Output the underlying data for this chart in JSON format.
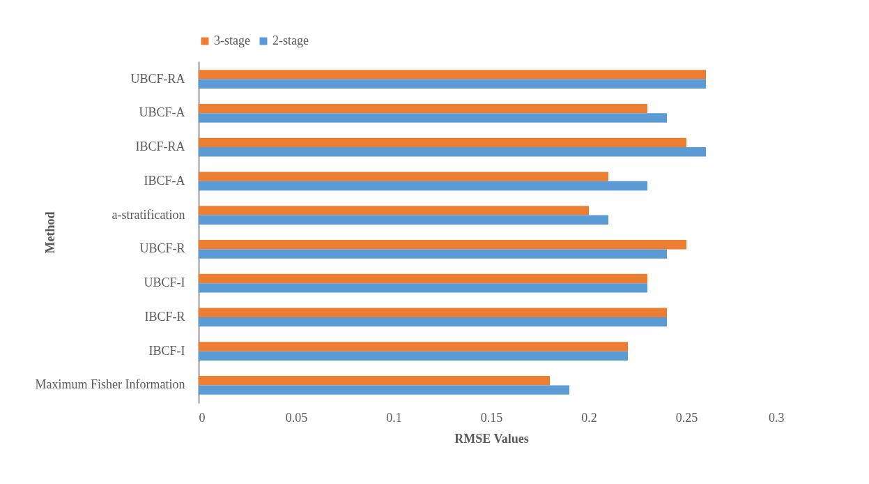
{
  "chart_data": {
    "type": "bar",
    "orientation": "horizontal",
    "xlabel": "RMSE Values",
    "ylabel": "Method",
    "legend": "top",
    "categories": [
      "UBCF-RA",
      "UBCF-A",
      "IBCF-RA",
      "IBCF-A",
      "a-stratification",
      "UBCF-R",
      "UBCF-I",
      "IBCF-R",
      "IBCF-I",
      "Maximum Fisher Information"
    ],
    "series": [
      {
        "name": "3-stage",
        "color": "#ed7d31",
        "values": [
          0.26,
          0.23,
          0.25,
          0.21,
          0.2,
          0.25,
          0.23,
          0.24,
          0.22,
          0.18
        ]
      },
      {
        "name": "2-stage",
        "color": "#5b9bd5",
        "values": [
          0.26,
          0.24,
          0.26,
          0.23,
          0.21,
          0.24,
          0.23,
          0.24,
          0.22,
          0.19
        ]
      }
    ],
    "xlim": [
      0,
      0.3
    ],
    "xticks": [
      0,
      0.05,
      0.1,
      0.15,
      0.2,
      0.25,
      0.3
    ]
  }
}
